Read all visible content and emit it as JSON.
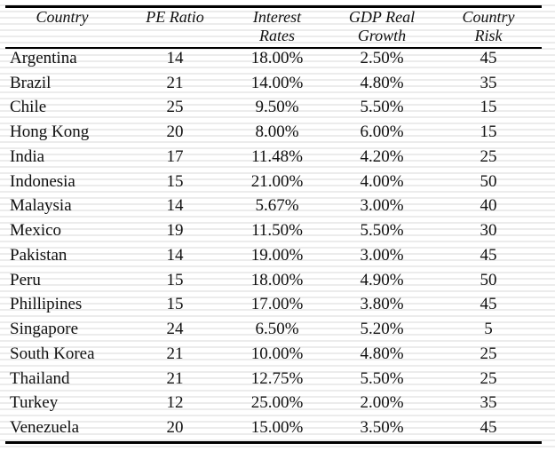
{
  "table": {
    "header": [
      [
        "Country"
      ],
      [
        "PE Ratio"
      ],
      [
        "Interest",
        "Rates"
      ],
      [
        "GDP Real",
        "Growth"
      ],
      [
        "Country",
        "Risk"
      ]
    ],
    "rows": [
      [
        "Argentina",
        "14",
        "18.00%",
        "2.50%",
        "45"
      ],
      [
        "Brazil",
        "21",
        "14.00%",
        "4.80%",
        "35"
      ],
      [
        "Chile",
        "25",
        "9.50%",
        "5.50%",
        "15"
      ],
      [
        "Hong Kong",
        "20",
        "8.00%",
        "6.00%",
        "15"
      ],
      [
        "India",
        "17",
        "11.48%",
        "4.20%",
        "25"
      ],
      [
        "Indonesia",
        "15",
        "21.00%",
        "4.00%",
        "50"
      ],
      [
        "Malaysia",
        "14",
        "5.67%",
        "3.00%",
        "40"
      ],
      [
        "Mexico",
        "19",
        "11.50%",
        "5.50%",
        "30"
      ],
      [
        "Pakistan",
        "14",
        "19.00%",
        "3.00%",
        "45"
      ],
      [
        "Peru",
        "15",
        "18.00%",
        "4.90%",
        "50"
      ],
      [
        "Phillipines",
        "15",
        "17.00%",
        "3.80%",
        "45"
      ],
      [
        "Singapore",
        "24",
        "6.50%",
        "5.20%",
        "5"
      ],
      [
        "South Korea",
        "21",
        "10.00%",
        "4.80%",
        "25"
      ],
      [
        "Thailand",
        "21",
        "12.75%",
        "5.50%",
        "25"
      ],
      [
        "Turkey",
        "12",
        "25.00%",
        "2.00%",
        "35"
      ],
      [
        "Venezuela",
        "20",
        "15.00%",
        "3.50%",
        "45"
      ]
    ]
  }
}
